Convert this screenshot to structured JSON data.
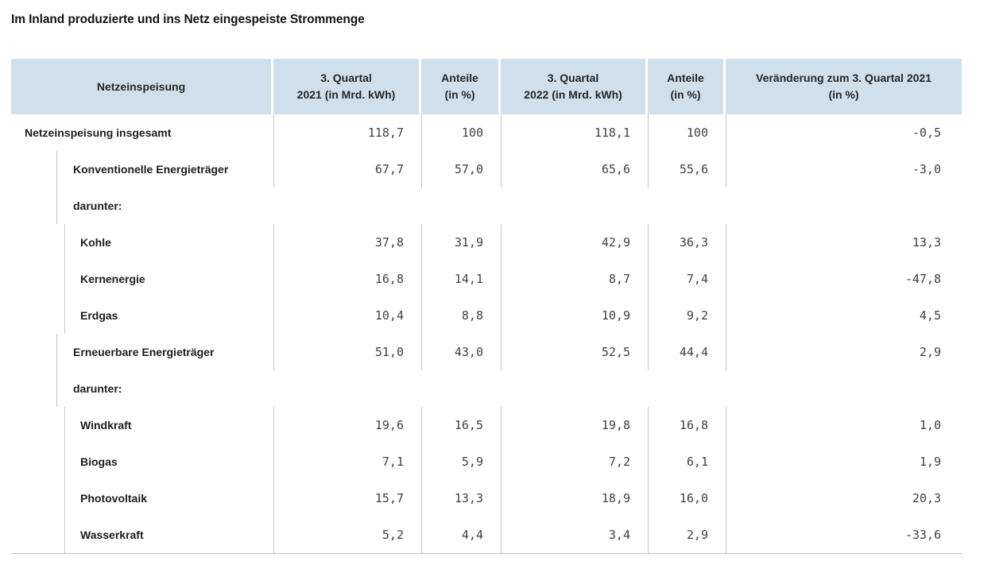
{
  "page": {
    "title": "Im Inland produzierte und ins Netz eingespeiste Strommenge"
  },
  "colors": {
    "header_bg": "#cfe0ec",
    "grid_line": "#c6c6c6",
    "bottom_border": "#bfbfbf",
    "label_text": "#1d1d1d",
    "number_text": "#414141"
  },
  "table": {
    "columns": [
      {
        "label": "Netzeinspeisung"
      },
      {
        "label": "3. Quartal\n2021 (in Mrd. kWh)"
      },
      {
        "label": "Anteile\n(in %)"
      },
      {
        "label": "3. Quartal\n2022 (in Mrd. kWh)"
      },
      {
        "label": "Anteile\n(in %)"
      },
      {
        "label": "Veränderung zum 3. Quartal 2021\n(in %)"
      }
    ],
    "rows": [
      {
        "label": "Netzeinspeisung insgesamt",
        "level": 0,
        "values": [
          "118,7",
          "100",
          "118,1",
          "100",
          "-0,5"
        ]
      },
      {
        "label": "Konventionelle Energieträger",
        "level": 1,
        "values": [
          "67,7",
          "57,0",
          "65,6",
          "55,6",
          "-3,0"
        ]
      },
      {
        "label": "darunter:",
        "level": 1,
        "type": "darunter"
      },
      {
        "label": "Kohle",
        "level": 2,
        "values": [
          "37,8",
          "31,9",
          "42,9",
          "36,3",
          "13,3"
        ]
      },
      {
        "label": "Kernenergie",
        "level": 2,
        "values": [
          "16,8",
          "14,1",
          "8,7",
          "7,4",
          "-47,8"
        ]
      },
      {
        "label": "Erdgas",
        "level": 2,
        "values": [
          "10,4",
          "8,8",
          "10,9",
          "9,2",
          "4,5"
        ]
      },
      {
        "label": "Erneuerbare Energieträger",
        "level": 1,
        "values": [
          "51,0",
          "43,0",
          "52,5",
          "44,4",
          "2,9"
        ]
      },
      {
        "label": "darunter:",
        "level": 1,
        "type": "darunter"
      },
      {
        "label": "Windkraft",
        "level": 2,
        "values": [
          "19,6",
          "16,5",
          "19,8",
          "16,8",
          "1,0"
        ]
      },
      {
        "label": "Biogas",
        "level": 2,
        "values": [
          "7,1",
          "5,9",
          "7,2",
          "6,1",
          "1,9"
        ]
      },
      {
        "label": "Photovoltaik",
        "level": 2,
        "values": [
          "15,7",
          "13,3",
          "18,9",
          "16,0",
          "20,3"
        ]
      },
      {
        "label": "Wasserkraft",
        "level": 2,
        "values": [
          "5,2",
          "4,4",
          "3,4",
          "2,9",
          "-33,6"
        ]
      }
    ]
  },
  "chart_data": {
    "type": "table",
    "title": "Im Inland produzierte und ins Netz eingespeiste Strommenge",
    "columns": [
      "Netzeinspeisung",
      "3. Quartal 2021 (in Mrd. kWh)",
      "Anteile (in %)",
      "3. Quartal 2022 (in Mrd. kWh)",
      "Anteile (in %)",
      "Veränderung zum 3. Quartal 2021 (in %)"
    ],
    "rows": [
      {
        "name": "Netzeinspeisung insgesamt",
        "q3_2021": 118.7,
        "anteil_2021": 100,
        "q3_2022": 118.1,
        "anteil_2022": 100,
        "veraenderung": -0.5
      },
      {
        "name": "Konventionelle Energieträger",
        "q3_2021": 67.7,
        "anteil_2021": 57.0,
        "q3_2022": 65.6,
        "anteil_2022": 55.6,
        "veraenderung": -3.0
      },
      {
        "name": "Kohle",
        "q3_2021": 37.8,
        "anteil_2021": 31.9,
        "q3_2022": 42.9,
        "anteil_2022": 36.3,
        "veraenderung": 13.3
      },
      {
        "name": "Kernenergie",
        "q3_2021": 16.8,
        "anteil_2021": 14.1,
        "q3_2022": 8.7,
        "anteil_2022": 7.4,
        "veraenderung": -47.8
      },
      {
        "name": "Erdgas",
        "q3_2021": 10.4,
        "anteil_2021": 8.8,
        "q3_2022": 10.9,
        "anteil_2022": 9.2,
        "veraenderung": 4.5
      },
      {
        "name": "Erneuerbare Energieträger",
        "q3_2021": 51.0,
        "anteil_2021": 43.0,
        "q3_2022": 52.5,
        "anteil_2022": 44.4,
        "veraenderung": 2.9
      },
      {
        "name": "Windkraft",
        "q3_2021": 19.6,
        "anteil_2021": 16.5,
        "q3_2022": 19.8,
        "anteil_2022": 16.8,
        "veraenderung": 1.0
      },
      {
        "name": "Biogas",
        "q3_2021": 7.1,
        "anteil_2021": 5.9,
        "q3_2022": 7.2,
        "anteil_2022": 6.1,
        "veraenderung": 1.9
      },
      {
        "name": "Photovoltaik",
        "q3_2021": 15.7,
        "anteil_2021": 13.3,
        "q3_2022": 18.9,
        "anteil_2022": 16.0,
        "veraenderung": 20.3
      },
      {
        "name": "Wasserkraft",
        "q3_2021": 5.2,
        "anteil_2021": 4.4,
        "q3_2022": 3.4,
        "anteil_2022": 2.9,
        "veraenderung": -33.6
      }
    ]
  }
}
